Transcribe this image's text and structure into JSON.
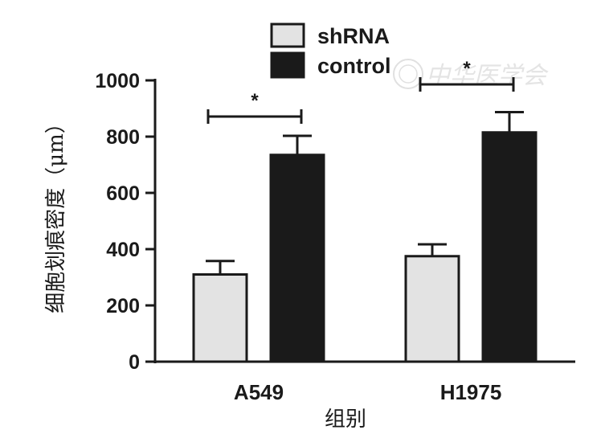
{
  "chart_data": {
    "type": "bar",
    "title": "",
    "xlabel": "组别",
    "ylabel": "细胞划痕密度（μm）",
    "categories": [
      "A549",
      "H1975"
    ],
    "series": [
      {
        "name": "shRNA",
        "values": [
          310,
          375
        ],
        "errors": [
          48,
          42
        ],
        "color": "#e3e3e3"
      },
      {
        "name": "control",
        "values": [
          735,
          815
        ],
        "errors": [
          68,
          72
        ],
        "color": "#1a1a1a"
      }
    ],
    "ylim": [
      0,
      1000
    ],
    "yticks": [
      0,
      200,
      400,
      600,
      800,
      1000
    ],
    "legend_position": "top-center",
    "grid": false,
    "significance": [
      {
        "category": "A549",
        "label": "*"
      },
      {
        "category": "H1975",
        "label": "*"
      }
    ]
  },
  "watermark_text": "中华医学会",
  "colors": {
    "axis": "#1a1a1a",
    "bar_edge": "#1a1a1a"
  }
}
